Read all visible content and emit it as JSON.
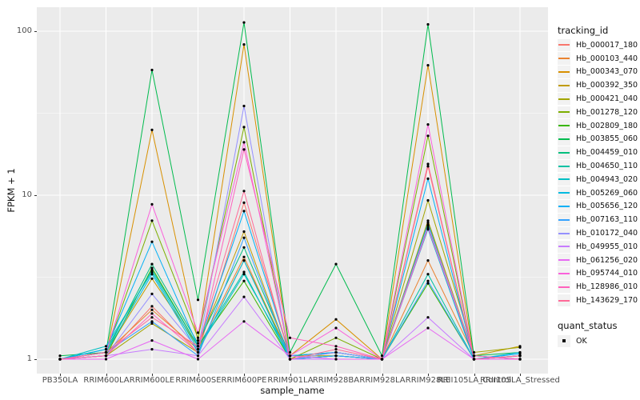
{
  "figure": {
    "background": "#FFFFFF",
    "panel_background": "#EBEBEB",
    "gridline_color": "#FFFFFF",
    "tick_color": "#333333",
    "tick_label_color": "#4D4D4D"
  },
  "chart_data": {
    "type": "line",
    "title": "",
    "xlabel": "sample_name",
    "ylabel": "FPKM + 1",
    "y_scale": "log10",
    "ylim": [
      0.85,
      140
    ],
    "y_breaks": [
      1,
      10,
      100
    ],
    "y_break_labels": [
      "1",
      "10",
      "100"
    ],
    "y_minor_breaks": [
      3.1623,
      31.623
    ],
    "grid": "on",
    "legend_position": "right",
    "point_color": "#000000",
    "categories": [
      "PB350LA",
      "RRIM600LA",
      "RRIM600LE",
      "RRIM600SE",
      "RRIM600PE",
      "RRIM901LA",
      "RRIM928BA",
      "RRIM928LA",
      "RRIM928LE",
      "RRII105LA_Control",
      "RRII105LA_Stressed"
    ],
    "series": [
      {
        "name": "Hb_000017_180",
        "color": "#F8766D",
        "values": [
          1.0,
          1.05,
          2.1,
          1.1,
          9.0,
          1.05,
          1.1,
          1.0,
          15,
          1.0,
          1.05
        ]
      },
      {
        "name": "Hb_000103_440",
        "color": "#EA8331",
        "values": [
          1.0,
          1.1,
          2.0,
          1.15,
          4.2,
          1.0,
          1.05,
          1.0,
          4.0,
          1.05,
          1.0
        ]
      },
      {
        "name": "Hb_000343_070",
        "color": "#D89000",
        "values": [
          1.0,
          1.05,
          25,
          1.3,
          83,
          1.05,
          1.75,
          1.0,
          62,
          1.0,
          1.05
        ]
      },
      {
        "name": "Hb_000392_350",
        "color": "#C09B00",
        "values": [
          1.0,
          1.1,
          3.1,
          1.2,
          6.0,
          1.0,
          1.1,
          1.0,
          7.0,
          1.05,
          1.2
        ]
      },
      {
        "name": "Hb_000421_040",
        "color": "#A3A500",
        "values": [
          1.0,
          1.05,
          1.65,
          1.1,
          4.0,
          1.05,
          1.05,
          1.0,
          9.3,
          1.1,
          1.18
        ]
      },
      {
        "name": "Hb_001278_120",
        "color": "#7CAE00",
        "values": [
          1.0,
          1.1,
          7.0,
          1.35,
          26,
          1.0,
          1.35,
          1.0,
          23,
          1.0,
          1.0
        ]
      },
      {
        "name": "Hb_002809_180",
        "color": "#39B600",
        "values": [
          1.0,
          1.05,
          3.6,
          1.2,
          3.0,
          1.0,
          1.05,
          1.0,
          2.9,
          1.0,
          1.05
        ]
      },
      {
        "name": "Hb_003855_060",
        "color": "#00BB4E",
        "values": [
          1.05,
          1.1,
          58,
          2.3,
          113,
          1.1,
          3.8,
          1.05,
          110,
          1.05,
          1.1
        ]
      },
      {
        "name": "Hb_004459_010",
        "color": "#00BF7D",
        "values": [
          1.0,
          1.1,
          3.8,
          1.25,
          4.8,
          1.05,
          1.1,
          1.0,
          6.8,
          1.0,
          1.0
        ]
      },
      {
        "name": "Hb_004650_110",
        "color": "#00C1A3",
        "values": [
          1.0,
          1.15,
          3.5,
          1.2,
          3.4,
          1.0,
          1.05,
          1.0,
          3.3,
          1.0,
          1.05
        ]
      },
      {
        "name": "Hb_004943_020",
        "color": "#00BFC4",
        "values": [
          1.0,
          1.2,
          3.4,
          1.15,
          3.3,
          1.05,
          1.1,
          1.0,
          6.5,
          1.05,
          1.0
        ]
      },
      {
        "name": "Hb_005269_060",
        "color": "#00BAE0",
        "values": [
          1.0,
          1.1,
          3.3,
          1.1,
          4.0,
          1.0,
          1.05,
          1.0,
          6.2,
          1.0,
          1.1
        ]
      },
      {
        "name": "Hb_005656_120",
        "color": "#00B0F6",
        "values": [
          1.0,
          1.15,
          5.2,
          1.2,
          8.0,
          1.05,
          1.1,
          1.0,
          12.6,
          1.0,
          1.08
        ]
      },
      {
        "name": "Hb_007163_110",
        "color": "#35A2FF",
        "values": [
          1.0,
          1.1,
          1.7,
          1.05,
          5.5,
          1.0,
          1.05,
          1.0,
          3.0,
          1.0,
          1.05
        ]
      },
      {
        "name": "Hb_010172_040",
        "color": "#9590FF",
        "values": [
          1.0,
          1.05,
          2.5,
          1.15,
          35,
          1.0,
          1.1,
          1.0,
          6.6,
          1.05,
          1.0
        ]
      },
      {
        "name": "Hb_049955_010",
        "color": "#C77CFF",
        "values": [
          1.0,
          1.05,
          1.15,
          1.05,
          2.4,
          1.0,
          1.0,
          1.0,
          1.8,
          1.0,
          1.0
        ]
      },
      {
        "name": "Hb_061256_020",
        "color": "#E76BF3",
        "values": [
          1.0,
          1.0,
          1.3,
          1.0,
          1.7,
          1.05,
          1.0,
          1.0,
          1.55,
          1.0,
          1.0
        ]
      },
      {
        "name": "Hb_095744_010",
        "color": "#FA62DB",
        "values": [
          1.0,
          1.1,
          8.8,
          1.45,
          21,
          1.05,
          1.55,
          1.0,
          27,
          1.0,
          1.05
        ]
      },
      {
        "name": "Hb_128986_010",
        "color": "#FF62BC",
        "values": [
          1.0,
          1.05,
          1.9,
          1.1,
          19,
          1.35,
          1.2,
          1.0,
          6.3,
          1.05,
          1.0
        ]
      },
      {
        "name": "Hb_143629_170",
        "color": "#FF6A98",
        "values": [
          1.0,
          1.1,
          1.8,
          1.2,
          10.6,
          1.0,
          1.15,
          1.0,
          15.5,
          1.0,
          1.05
        ]
      }
    ],
    "legends": {
      "tracking_id": {
        "title": "tracking_id"
      },
      "quant_status": {
        "title": "quant_status",
        "items": [
          {
            "label": "OK",
            "symbol": "black-square"
          }
        ]
      }
    }
  }
}
